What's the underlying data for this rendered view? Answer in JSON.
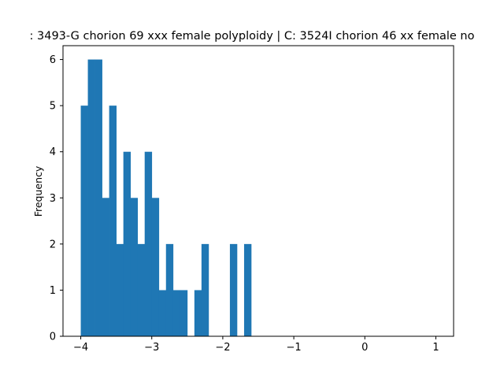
{
  "chart_data": {
    "type": "bar",
    "title": ": 3493-G chorion 69 xxx female polyploidy | C: 3524I chorion 46 xx female no",
    "xlabel": "",
    "ylabel": "Frequency",
    "xlim": [
      -4.25,
      1.25
    ],
    "ylim": [
      0,
      6.3
    ],
    "x_ticks": [
      -4,
      -3,
      -2,
      -1,
      0,
      1
    ],
    "x_tick_labels": [
      "−4",
      "−3",
      "−2",
      "−1",
      "0",
      "1"
    ],
    "y_ticks": [
      0,
      1,
      2,
      3,
      4,
      5,
      6
    ],
    "y_tick_labels": [
      "0",
      "1",
      "2",
      "3",
      "4",
      "5",
      "6"
    ],
    "bin_edges": [
      -4.0,
      -3.9,
      -3.8,
      -3.7,
      -3.6,
      -3.5,
      -3.4,
      -3.3,
      -3.2,
      -3.1,
      -3.0,
      -2.9,
      -2.8,
      -2.7,
      -2.6,
      -2.5,
      -2.4,
      -2.3,
      -2.2,
      -2.1,
      -2.0,
      -1.9,
      -1.8,
      -1.7,
      -1.6,
      -1.5,
      -1.4,
      -1.3,
      -1.2,
      -1.1,
      -1.0,
      -0.9,
      -0.8,
      -0.7,
      -0.6,
      -0.5,
      -0.4,
      -0.3,
      -0.2,
      -0.1,
      0.0,
      0.1,
      0.2,
      0.3,
      0.4,
      0.5,
      0.6,
      0.7,
      0.8,
      0.9,
      1.0
    ],
    "counts": [
      5,
      6,
      6,
      3,
      5,
      2,
      4,
      3,
      2,
      4,
      3,
      1,
      2,
      1,
      1,
      0,
      1,
      2,
      0,
      0,
      0,
      2,
      0,
      2,
      0,
      0,
      0,
      0,
      0,
      0,
      0,
      0,
      0,
      0,
      0,
      0,
      0,
      0,
      0,
      0,
      0,
      0,
      0,
      0,
      0,
      0,
      0,
      0,
      0,
      0
    ],
    "bar_color": "#1f77b4",
    "grid": false,
    "legend": "none"
  }
}
